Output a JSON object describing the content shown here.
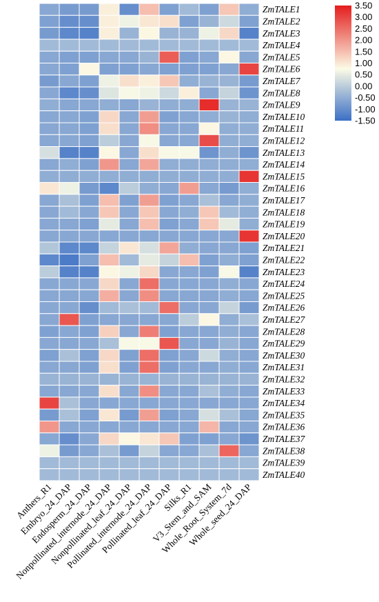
{
  "chart_data": {
    "type": "heatmap",
    "rows": [
      "ZmTALE1",
      "ZmTALE2",
      "ZmTALE3",
      "ZmTALE4",
      "ZmTALE5",
      "ZmTALE6",
      "ZmTALE7",
      "ZmTALE8",
      "ZmTALE9",
      "ZmTALE10",
      "ZmTALE11",
      "ZmTALE12",
      "ZmTALE13",
      "ZmTALE14",
      "ZmTALE15",
      "ZmTALE16",
      "ZmTALE17",
      "ZmTALE18",
      "ZmTALE19",
      "ZmTALE20",
      "ZmTALE21",
      "ZmTALE22",
      "ZmTALE23",
      "ZmTALE24",
      "ZmTALE25",
      "ZmTALE26",
      "ZmTALE27",
      "ZmTALE28",
      "ZmTALE29",
      "ZmTALE30",
      "ZmTALE31",
      "ZmTALE32",
      "ZmTALE33",
      "ZmTALE34",
      "ZmTALE35",
      "ZmTALE36",
      "ZmTALE37",
      "ZmTALE38",
      "ZmTALE39",
      "ZmTALE40"
    ],
    "columns": [
      "Anthers_R1",
      "Embryo_24_DAP",
      "Endosperm_24_DAP",
      "Nonpollinated_internode_24_DAP",
      "Nonpollinated_leaf_24_DAP",
      "Pollinated_internode_24_DAP",
      "Pollinated_leaf_24_DAP",
      "Silks_R1",
      "V3_Stem_and_SAM",
      "Whole_Root_System_7d",
      "Whole_seed_24_DAP"
    ],
    "values": [
      [
        -0.6,
        -0.8,
        -0.8,
        0.9,
        -1.0,
        1.5,
        -0.7,
        -0.3,
        -0.7,
        1.4,
        -0.5
      ],
      [
        -0.7,
        -1.0,
        -1.0,
        0.9,
        0.6,
        1.0,
        1.1,
        -0.7,
        -0.4,
        0.2,
        -0.7
      ],
      [
        -0.8,
        -1.1,
        -1.2,
        0.9,
        -0.4,
        0.8,
        -0.4,
        -0.4,
        0.6,
        1.2,
        -1.2
      ],
      [
        -0.3,
        -0.3,
        -0.3,
        -0.3,
        -0.3,
        -0.3,
        -0.3,
        -0.3,
        -0.3,
        -0.3,
        -0.3
      ],
      [
        -0.6,
        -0.7,
        -0.7,
        -0.6,
        -0.6,
        -0.4,
        2.7,
        -0.7,
        -0.6,
        0.8,
        -0.6
      ],
      [
        -0.6,
        -0.7,
        0.8,
        -0.7,
        -0.7,
        -0.6,
        -0.7,
        -0.7,
        -0.7,
        -0.6,
        3.0
      ],
      [
        -0.8,
        -0.6,
        -0.7,
        0.6,
        1.1,
        0.9,
        1.4,
        -0.5,
        -0.4,
        -0.4,
        -0.8
      ],
      [
        -0.6,
        -1.1,
        -1.0,
        0.4,
        0.7,
        0.6,
        0.2,
        0.9,
        -0.6,
        0.1,
        -0.9
      ],
      [
        -0.5,
        -0.6,
        -0.6,
        -0.5,
        -0.6,
        -0.4,
        -0.5,
        -0.5,
        3.3,
        -0.4,
        -0.4
      ],
      [
        -0.6,
        -0.6,
        -0.7,
        1.2,
        -0.6,
        1.9,
        -0.7,
        -0.6,
        -0.5,
        -0.4,
        -0.5
      ],
      [
        -0.6,
        -0.6,
        -0.7,
        1.1,
        -0.6,
        2.1,
        -0.6,
        -0.6,
        0.8,
        -0.5,
        -0.5
      ],
      [
        -0.6,
        -0.6,
        -0.7,
        0.0,
        -0.6,
        0.7,
        -0.6,
        -0.6,
        2.9,
        -0.5,
        -0.5
      ],
      [
        0.3,
        -1.2,
        -1.2,
        0.8,
        -0.6,
        1.1,
        0.7,
        0.7,
        -0.9,
        -0.5,
        -0.9
      ],
      [
        -0.6,
        -0.5,
        -0.7,
        2.0,
        -0.6,
        1.8,
        -0.5,
        -0.5,
        -0.5,
        -0.5,
        -0.5
      ],
      [
        -0.5,
        -0.5,
        -0.5,
        -0.5,
        -0.5,
        -0.5,
        -0.5,
        -0.5,
        -0.5,
        -0.5,
        3.2
      ],
      [
        1.0,
        0.6,
        -0.8,
        -1.1,
        0.0,
        -0.5,
        -0.6,
        1.9,
        -0.6,
        -0.8,
        -0.5
      ],
      [
        -0.6,
        -0.2,
        -0.7,
        1.5,
        -0.7,
        1.9,
        -0.7,
        -0.6,
        -0.2,
        -0.6,
        -0.5
      ],
      [
        -0.6,
        -0.3,
        -0.6,
        1.4,
        -0.6,
        1.4,
        -0.6,
        -0.5,
        1.4,
        -0.3,
        -0.5
      ],
      [
        -0.6,
        -0.6,
        -0.7,
        0.5,
        -0.6,
        1.5,
        -0.7,
        -0.6,
        1.4,
        0.5,
        -0.5
      ],
      [
        -0.6,
        -0.6,
        -0.6,
        -0.6,
        -0.6,
        -0.6,
        -0.6,
        -0.6,
        -0.6,
        -0.6,
        3.2
      ],
      [
        -0.1,
        -1.1,
        -1.1,
        0.1,
        1.0,
        0.3,
        1.8,
        -0.5,
        -0.6,
        -0.6,
        -0.7
      ],
      [
        -1.1,
        -1.3,
        -0.7,
        1.5,
        -0.3,
        0.5,
        0.1,
        1.5,
        -0.7,
        -0.5,
        -0.7
      ],
      [
        0.0,
        -1.2,
        -1.2,
        0.8,
        0.6,
        1.2,
        -0.6,
        -0.6,
        -0.7,
        0.7,
        -1.2
      ],
      [
        -0.6,
        -0.6,
        -0.6,
        1.2,
        -0.6,
        2.5,
        -0.6,
        -0.6,
        -0.6,
        -0.5,
        -0.6
      ],
      [
        -0.6,
        -0.6,
        -0.6,
        1.7,
        -0.6,
        2.1,
        -0.6,
        -0.6,
        -0.6,
        -0.5,
        -0.6
      ],
      [
        -0.6,
        -0.6,
        -1.0,
        -0.3,
        -0.2,
        -0.3,
        2.5,
        -0.6,
        -0.6,
        0.1,
        -0.8
      ],
      [
        -0.6,
        2.8,
        -0.7,
        -0.6,
        -0.6,
        -0.6,
        -0.6,
        0.0,
        0.8,
        -0.5,
        -0.2
      ],
      [
        -0.7,
        -0.6,
        -0.7,
        1.3,
        -0.6,
        2.3,
        -0.7,
        -0.6,
        -0.6,
        -0.5,
        -0.6
      ],
      [
        -0.6,
        -0.6,
        -0.6,
        -0.2,
        0.7,
        0.7,
        2.8,
        -0.6,
        -0.6,
        -0.4,
        -0.6
      ],
      [
        -0.7,
        -0.2,
        -0.7,
        1.2,
        -0.7,
        2.5,
        -0.7,
        -0.6,
        0.2,
        -0.5,
        -0.6
      ],
      [
        -0.6,
        -0.6,
        -0.7,
        1.1,
        -0.7,
        2.5,
        -0.7,
        -0.6,
        -0.6,
        -0.5,
        -0.6
      ],
      [
        -0.4,
        -0.4,
        -0.4,
        -0.4,
        -0.4,
        -0.4,
        -0.4,
        -0.4,
        -0.4,
        -0.4,
        -0.4
      ],
      [
        -0.6,
        -0.6,
        -0.6,
        1.1,
        -0.6,
        2.1,
        -0.6,
        -0.6,
        -0.2,
        -0.5,
        -0.6
      ],
      [
        3.0,
        -0.2,
        -0.6,
        -0.6,
        -0.6,
        -0.6,
        -0.6,
        -0.6,
        -0.6,
        -0.6,
        -0.6
      ],
      [
        -0.8,
        -0.2,
        -0.7,
        1.0,
        -0.8,
        1.9,
        -0.7,
        -0.6,
        0.3,
        -0.2,
        -0.6
      ],
      [
        2.0,
        -0.6,
        -0.6,
        -0.6,
        -0.6,
        -0.6,
        -0.6,
        -0.6,
        1.6,
        -0.6,
        -0.6
      ],
      [
        -0.6,
        -1.0,
        -0.6,
        1.2,
        0.8,
        1.0,
        1.4,
        -0.7,
        -0.7,
        -0.6,
        -0.9
      ],
      [
        0.6,
        -0.8,
        -0.6,
        -0.2,
        -0.8,
        0.1,
        -0.6,
        -0.6,
        -0.2,
        2.6,
        -0.6
      ],
      [
        -0.3,
        -0.3,
        -0.3,
        -0.3,
        -0.3,
        -0.3,
        -0.3,
        -0.3,
        -0.3,
        -0.3,
        -0.3
      ],
      [
        -0.3,
        -0.3,
        -0.3,
        -0.3,
        -0.3,
        -0.3,
        -0.3,
        -0.3,
        -0.3,
        -0.3,
        -0.3
      ]
    ],
    "colorbar": {
      "min": -1.5,
      "max": 3.5,
      "ticks": [
        "3.50",
        "3.00",
        "2.50",
        "2.00",
        "1.50",
        "1.00",
        "0.50",
        "0.00",
        "-0.50",
        "-1.00",
        "-1.50"
      ],
      "colors": {
        "low": "#3b6fc5",
        "mid": "#fbfbe6",
        "high": "#e41d1d"
      }
    },
    "grid": true,
    "legend_position": "top-right"
  }
}
